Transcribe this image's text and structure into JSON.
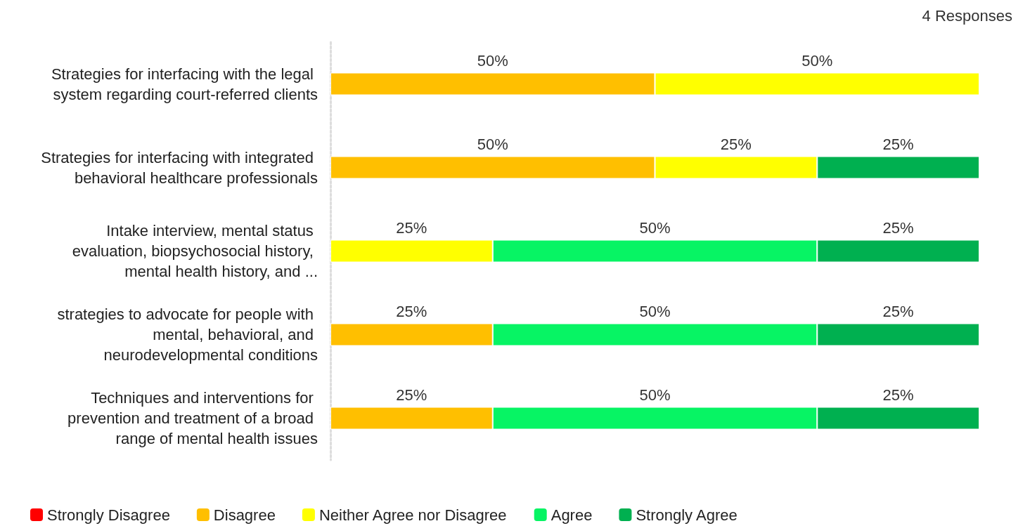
{
  "chart_data": {
    "type": "bar",
    "orientation": "horizontal",
    "stacked": true,
    "legend": "bottom left",
    "annotations": [
      "4 Responses"
    ],
    "categories": [
      "Strategies for interfacing with the legal system regarding court-referred clients",
      "Strategies for interfacing with integrated behavioral healthcare professionals",
      "Intake interview, mental status evaluation, biopsychosocial history, mental health history, and ...",
      "strategies to advocate for people with mental, behavioral, and neurodevelopmental conditions",
      "Techniques and interventions for prevention and treatment of a broad range of mental health issues"
    ],
    "series": [
      {
        "name": "Strongly Disagree",
        "color": "#ff0000",
        "values": [
          null,
          null,
          null,
          null,
          null
        ],
        "value_labels": [
          null,
          null,
          null,
          null,
          null
        ]
      },
      {
        "name": "Disagree",
        "color": "#ffbf00",
        "values": [
          50,
          50,
          null,
          25,
          25
        ],
        "value_labels": [
          "50%",
          "50%",
          null,
          "25%",
          "25%"
        ]
      },
      {
        "name": "Neither Agree nor Disagree",
        "color": "#ffff00",
        "values": [
          50,
          25,
          25,
          null,
          null
        ],
        "value_labels": [
          "50%",
          "25%",
          "25%",
          null,
          null
        ]
      },
      {
        "name": "Agree",
        "color": "#07f464",
        "values": [
          null,
          null,
          50,
          50,
          50
        ],
        "value_labels": [
          null,
          null,
          "50%",
          "50%",
          "50%"
        ]
      },
      {
        "name": "Strongly Agree",
        "color": "#00b050",
        "values": [
          null,
          25,
          25,
          25,
          25
        ],
        "value_labels": [
          null,
          "25%",
          "25%",
          "25%",
          "25%"
        ]
      }
    ]
  }
}
